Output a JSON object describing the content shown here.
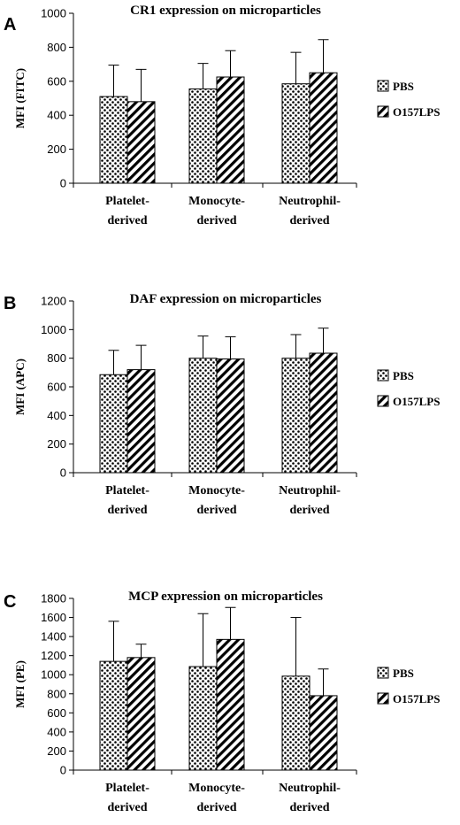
{
  "chart_data": [
    {
      "type": "bar",
      "panel": "A",
      "title": "CR1 expression on microparticles",
      "ylabel": "MFI (FITC)",
      "xlabel": "",
      "ylim": [
        0,
        1000
      ],
      "yticks": [
        0,
        200,
        400,
        600,
        800,
        1000
      ],
      "categories": [
        [
          "Platelet-",
          "derived"
        ],
        [
          "Monocyte-",
          "derived"
        ],
        [
          "Neutrophil-",
          "derived"
        ]
      ],
      "series": [
        {
          "name": "PBS",
          "values": [
            510,
            555,
            585
          ],
          "errors": [
            185,
            150,
            185
          ]
        },
        {
          "name": "O157LPS",
          "values": [
            480,
            625,
            650
          ],
          "errors": [
            190,
            155,
            195
          ]
        }
      ],
      "legend": "right",
      "grid": false
    },
    {
      "type": "bar",
      "panel": "B",
      "title": "DAF expression on microparticles",
      "ylabel": "MFI (APC)",
      "xlabel": "",
      "ylim": [
        0,
        1200
      ],
      "yticks": [
        0,
        200,
        400,
        600,
        800,
        1000,
        1200
      ],
      "categories": [
        [
          "Platelet-",
          "derived"
        ],
        [
          "Monocyte-",
          "derived"
        ],
        [
          "Neutrophil-",
          "derived"
        ]
      ],
      "series": [
        {
          "name": "PBS",
          "values": [
            685,
            800,
            800
          ],
          "errors": [
            170,
            155,
            165
          ]
        },
        {
          "name": "O157LPS",
          "values": [
            720,
            795,
            835
          ],
          "errors": [
            170,
            155,
            175
          ]
        }
      ],
      "legend": "right",
      "grid": false
    },
    {
      "type": "bar",
      "panel": "C",
      "title": "MCP expression on microparticles",
      "ylabel": "MFI (PE)",
      "xlabel": "",
      "ylim": [
        0,
        1800
      ],
      "yticks": [
        0,
        200,
        400,
        600,
        800,
        1000,
        1200,
        1400,
        1600,
        1800
      ],
      "categories": [
        [
          "Platelet-",
          "derived"
        ],
        [
          "Monocyte-",
          "derived"
        ],
        [
          "Neutrophil-",
          "derived"
        ]
      ],
      "series": [
        {
          "name": "PBS",
          "values": [
            1140,
            1085,
            985
          ],
          "errors": [
            420,
            555,
            615
          ]
        },
        {
          "name": "O157LPS",
          "values": [
            1180,
            1370,
            780
          ],
          "errors": [
            140,
            335,
            280
          ]
        }
      ],
      "legend": "right",
      "grid": false
    }
  ]
}
